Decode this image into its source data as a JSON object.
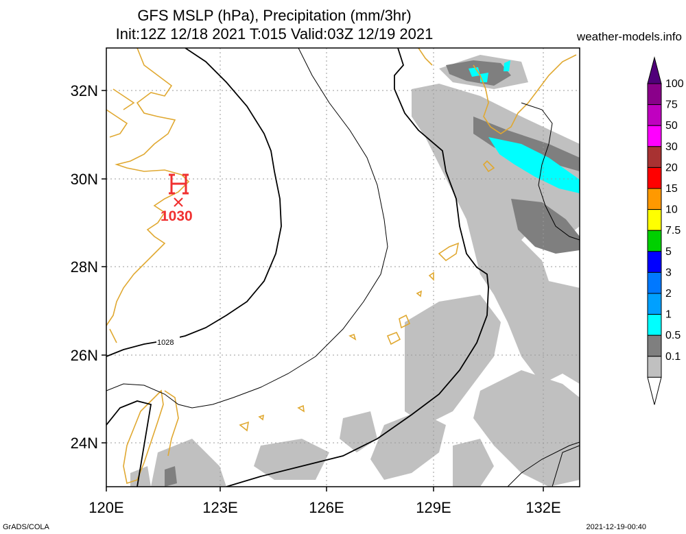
{
  "title": {
    "line1": "GFS MSLP (hPa), Precipitation (mm/3hr)",
    "line2": "Init:12Z 12/18 2021 T:015 Valid:03Z 12/19 2021"
  },
  "site": "weather-models.info",
  "footer": {
    "left": "GrADS/COLA",
    "right": "2021-12-19-00:40"
  },
  "map": {
    "lon_range": [
      120,
      133
    ],
    "lat_range": [
      23,
      33
    ],
    "lon_ticks": [
      "120E",
      "123E",
      "126E",
      "129E",
      "132E"
    ],
    "lat_ticks": [
      "32N",
      "30N",
      "28N",
      "26N",
      "24N"
    ],
    "high_center": {
      "symbol": "H",
      "pressure": "1030",
      "lon": 122.0,
      "lat": 29.5
    },
    "isobar_label": "1028",
    "colors": {
      "coast": "#e0a830",
      "isobar": "#000000",
      "high": "#f03030",
      "grid": "#9a9a9a"
    }
  },
  "colorbar": {
    "levels": [
      "100",
      "75",
      "50",
      "30",
      "20",
      "15",
      "10",
      "7.5",
      "5",
      "3",
      "2",
      "1",
      "0.5",
      "0.1"
    ],
    "colors": [
      "#8a008a",
      "#c000c0",
      "#ff00ff",
      "#a83232",
      "#ff0000",
      "#ff9900",
      "#ffff00",
      "#00d000",
      "#0000ff",
      "#0078ff",
      "#00a0ff",
      "#00ffff",
      "#7f7f7f",
      "#c0c0c0"
    ],
    "top_color": "#50007a"
  }
}
